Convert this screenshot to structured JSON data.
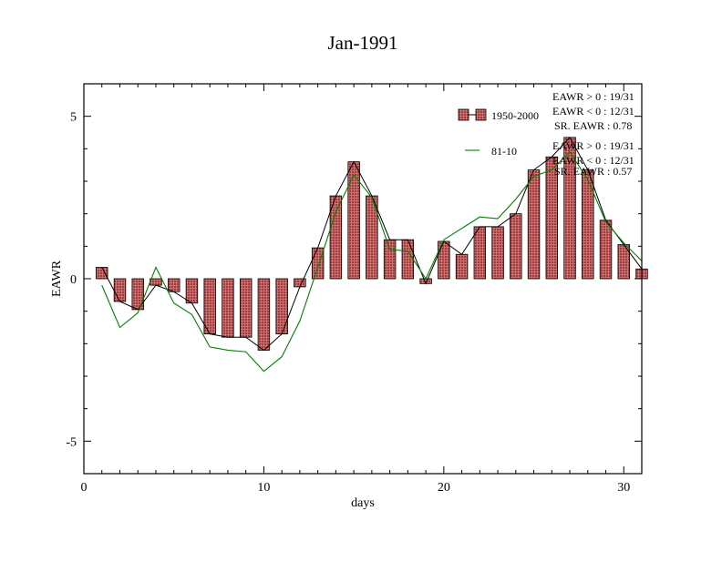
{
  "chart_data": {
    "type": "bar",
    "title": "Jan-1991",
    "xlabel": "days",
    "ylabel": "EAWR",
    "xlim": [
      0,
      31
    ],
    "ylim": [
      -6,
      6
    ],
    "x_ticks": [
      0,
      10,
      20,
      30
    ],
    "y_ticks": [
      -5,
      0,
      5
    ],
    "x_tick_labels": [
      "0",
      "10",
      "20",
      "30"
    ],
    "y_tick_labels": [
      "-5",
      "0",
      "5"
    ],
    "grid": false,
    "legend_position": "top-right",
    "days": [
      1,
      2,
      3,
      4,
      5,
      6,
      7,
      8,
      9,
      10,
      11,
      12,
      13,
      14,
      15,
      16,
      17,
      18,
      19,
      20,
      21,
      22,
      23,
      24,
      25,
      26,
      27,
      28,
      29,
      30,
      31
    ],
    "series": [
      {
        "name": "1950-2000",
        "kind": "bar-with-line",
        "bar_color": "#e07070",
        "line_color": "#000000",
        "values": [
          0.35,
          -0.7,
          -0.95,
          -0.2,
          -0.4,
          -0.75,
          -1.7,
          -1.8,
          -1.8,
          -2.2,
          -1.7,
          -0.25,
          0.95,
          2.55,
          3.6,
          2.55,
          1.2,
          1.2,
          -0.15,
          1.15,
          0.75,
          1.6,
          1.6,
          2.0,
          3.35,
          3.75,
          4.35,
          3.35,
          1.8,
          1.05,
          0.3
        ]
      },
      {
        "name": "81-10",
        "kind": "line",
        "line_color": "#008000",
        "values": [
          -0.2,
          -1.5,
          -1.05,
          0.35,
          -0.75,
          -1.1,
          -2.1,
          -2.2,
          -2.25,
          -2.85,
          -2.4,
          -1.3,
          0.35,
          2.05,
          3.2,
          2.5,
          0.9,
          0.85,
          0.0,
          1.2,
          1.55,
          1.9,
          1.85,
          2.45,
          3.15,
          3.35,
          3.9,
          3.05,
          1.75,
          1.1,
          0.55
        ]
      }
    ],
    "stats": [
      {
        "pos": "EAWR > 0 : 19/31",
        "neg": "EAWR < 0 : 12/31",
        "sr": "SR. EAWR :  0.78"
      },
      {
        "pos": "EAWR > 0 : 19/31",
        "neg": "EAWR < 0 : 12/31",
        "sr": "SR. EAWR :  0.57"
      }
    ]
  }
}
